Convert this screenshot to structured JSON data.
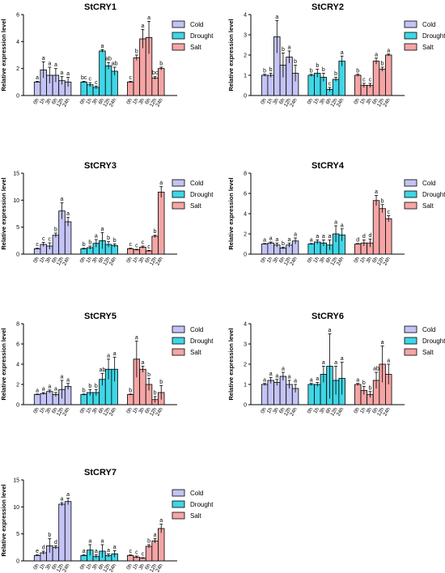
{
  "ylabel": "Relative expression level",
  "groups": [
    "Cold",
    "Drought",
    "Salt"
  ],
  "timepoints": [
    "0h",
    "1h",
    "3h",
    "6h",
    "12h",
    "24h"
  ],
  "colors": {
    "Cold": "#c3c3f5",
    "Drought": "#3fd6e6",
    "Salt": "#f5a5a5"
  },
  "chart_data": [
    {
      "type": "bar",
      "title": "StCRY1",
      "ylim": [
        0,
        6
      ],
      "yticks": [
        0,
        2,
        4,
        6
      ],
      "series": [
        {
          "name": "Cold",
          "values": [
            1.0,
            1.9,
            1.5,
            1.5,
            1.1,
            1.0
          ],
          "errors": [
            0.05,
            0.6,
            0.6,
            0.5,
            0.3,
            0.35
          ],
          "letters": [
            "a",
            "a",
            "a",
            "a",
            "a",
            "a"
          ]
        },
        {
          "name": "Drought",
          "values": [
            1.0,
            0.8,
            0.6,
            3.3,
            2.2,
            1.8
          ],
          "errors": [
            0.05,
            0.15,
            0.1,
            0.1,
            0.25,
            0.3
          ],
          "letters": [
            "bc",
            "c",
            "c",
            "a",
            "ab",
            "ab"
          ]
        },
        {
          "name": "Salt",
          "values": [
            1.0,
            2.8,
            4.2,
            4.3,
            1.3,
            2.0
          ],
          "errors": [
            0.05,
            0.2,
            0.7,
            1.2,
            0.1,
            0.1
          ],
          "letters": [
            "c",
            "b",
            "a",
            "a",
            "bc",
            "b"
          ]
        }
      ]
    },
    {
      "type": "bar",
      "title": "StCRY2",
      "ylim": [
        0,
        4
      ],
      "yticks": [
        0,
        1,
        2,
        3,
        4
      ],
      "series": [
        {
          "name": "Cold",
          "values": [
            1.0,
            1.0,
            2.9,
            1.5,
            1.9,
            1.1
          ],
          "errors": [
            0.05,
            0.1,
            0.8,
            0.6,
            0.3,
            0.4
          ],
          "letters": [
            "b",
            "b",
            "a",
            "b",
            "a",
            "b"
          ]
        },
        {
          "name": "Drought",
          "values": [
            1.0,
            1.1,
            0.9,
            0.3,
            0.8,
            1.7
          ],
          "errors": [
            0.05,
            0.2,
            0.2,
            0.1,
            0.1,
            0.25
          ],
          "letters": [
            "b",
            "b",
            "b",
            "c",
            "b",
            "a"
          ]
        },
        {
          "name": "Salt",
          "values": [
            1.0,
            0.5,
            0.5,
            1.7,
            1.3,
            2.0
          ],
          "errors": [
            0.05,
            0.1,
            0.1,
            0.15,
            0.1,
            0.05
          ],
          "letters": [
            "b",
            "c",
            "c",
            "a",
            "b",
            "a"
          ]
        }
      ]
    },
    {
      "type": "bar",
      "title": "StCRY3",
      "ylim": [
        0,
        15
      ],
      "yticks": [
        0,
        5,
        10,
        15
      ],
      "series": [
        {
          "name": "Cold",
          "values": [
            1.0,
            1.8,
            1.5,
            3.5,
            8.0,
            6.0
          ],
          "errors": [
            0.1,
            0.4,
            0.6,
            0.4,
            1.5,
            0.8
          ],
          "letters": [
            "c",
            "c",
            "c",
            "b",
            "a",
            "a"
          ]
        },
        {
          "name": "Drought",
          "values": [
            1.0,
            1.2,
            2.0,
            2.5,
            1.8,
            1.6
          ],
          "errors": [
            0.1,
            0.3,
            0.7,
            1.5,
            0.5,
            0.3
          ],
          "letters": [
            "b",
            "b",
            "a",
            "a",
            "b",
            "b"
          ]
        },
        {
          "name": "Salt",
          "values": [
            1.0,
            0.8,
            1.3,
            0.6,
            3.3,
            11.5
          ],
          "errors": [
            0.1,
            0.1,
            0.2,
            0.1,
            0.2,
            1.0
          ],
          "letters": [
            "c",
            "c",
            "c",
            "c",
            "b",
            "a"
          ]
        }
      ]
    },
    {
      "type": "bar",
      "title": "StCRY4",
      "ylim": [
        0,
        8
      ],
      "yticks": [
        0,
        2,
        4,
        6,
        8
      ],
      "series": [
        {
          "name": "Cold",
          "values": [
            1.0,
            1.1,
            0.9,
            0.6,
            0.9,
            1.3
          ],
          "errors": [
            0.05,
            0.1,
            0.2,
            0.1,
            0.2,
            0.3
          ],
          "letters": [
            "a",
            "a",
            "a",
            "b",
            "a",
            "a"
          ]
        },
        {
          "name": "Drought",
          "values": [
            1.0,
            1.2,
            1.1,
            0.9,
            2.0,
            1.9
          ],
          "errors": [
            0.05,
            0.2,
            0.3,
            0.5,
            0.8,
            0.6
          ],
          "letters": [
            "a",
            "a",
            "a",
            "a",
            "a",
            "a"
          ]
        },
        {
          "name": "Salt",
          "values": [
            1.0,
            1.1,
            1.1,
            5.3,
            4.5,
            3.5
          ],
          "errors": [
            0.05,
            0.3,
            0.4,
            0.5,
            0.4,
            0.3
          ],
          "letters": [
            "d",
            "d",
            "d",
            "a",
            "b",
            "c"
          ]
        }
      ]
    },
    {
      "type": "bar",
      "title": "StCRY5",
      "ylim": [
        0,
        8
      ],
      "yticks": [
        0,
        2,
        4,
        6,
        8
      ],
      "series": [
        {
          "name": "Cold",
          "values": [
            1.0,
            1.1,
            1.3,
            1.0,
            1.5,
            1.8
          ],
          "errors": [
            0.05,
            0.1,
            0.15,
            0.2,
            0.9,
            0.3
          ],
          "letters": [
            "a",
            "a",
            "a",
            "a",
            "a",
            "a"
          ]
        },
        {
          "name": "Drought",
          "values": [
            1.0,
            1.2,
            1.2,
            2.5,
            3.5,
            3.5
          ],
          "errors": [
            0.05,
            0.3,
            0.3,
            0.6,
            1.0,
            1.2
          ],
          "letters": [
            "b",
            "b",
            "b",
            "ab",
            "a",
            "a"
          ]
        },
        {
          "name": "Salt",
          "values": [
            1.0,
            4.5,
            3.5,
            2.0,
            0.5,
            1.2
          ],
          "errors": [
            0.05,
            1.8,
            0.3,
            0.6,
            0.3,
            0.7
          ],
          "letters": [
            "b",
            "a",
            "a",
            "b",
            "b",
            "b"
          ]
        }
      ]
    },
    {
      "type": "bar",
      "title": "StCRY6",
      "ylim": [
        0,
        4
      ],
      "yticks": [
        0,
        1,
        2,
        3,
        4
      ],
      "series": [
        {
          "name": "Cold",
          "values": [
            1.0,
            1.2,
            1.1,
            1.4,
            1.0,
            0.8
          ],
          "errors": [
            0.05,
            0.15,
            0.15,
            0.2,
            0.2,
            0.2
          ],
          "letters": [
            "a",
            "a",
            "a",
            "a",
            "a",
            "a"
          ]
        },
        {
          "name": "Drought",
          "values": [
            1.0,
            1.0,
            1.5,
            1.9,
            1.2,
            1.3
          ],
          "errors": [
            0.05,
            0.1,
            0.4,
            1.6,
            0.7,
            0.8
          ],
          "letters": [
            "a",
            "a",
            "a",
            "a",
            "a",
            "a"
          ]
        },
        {
          "name": "Salt",
          "values": [
            1.0,
            0.7,
            0.5,
            1.2,
            2.0,
            1.5
          ],
          "errors": [
            0.05,
            0.2,
            0.15,
            0.4,
            0.9,
            0.5
          ],
          "letters": [
            "a",
            "b",
            "b",
            "ab",
            "a",
            "a"
          ]
        }
      ]
    },
    {
      "type": "bar",
      "title": "StCRY7",
      "ylim": [
        0,
        15
      ],
      "yticks": [
        0,
        5,
        10,
        15
      ],
      "series": [
        {
          "name": "Cold",
          "values": [
            1.0,
            1.5,
            2.8,
            2.5,
            10.5,
            11.0
          ],
          "errors": [
            0.1,
            0.3,
            1.3,
            0.3,
            0.3,
            0.6
          ],
          "letters": [
            "e",
            "d",
            "b",
            "d",
            "a",
            "a"
          ]
        },
        {
          "name": "Drought",
          "values": [
            1.0,
            2.0,
            0.8,
            1.8,
            1.0,
            1.3
          ],
          "errors": [
            0.1,
            1.0,
            0.3,
            1.2,
            0.3,
            0.6
          ],
          "letters": [
            "a",
            "a",
            "a",
            "a",
            "a",
            "a"
          ]
        },
        {
          "name": "Salt",
          "values": [
            1.0,
            0.7,
            0.5,
            2.7,
            3.7,
            6.0
          ],
          "errors": [
            0.1,
            0.2,
            0.1,
            0.3,
            0.4,
            0.8
          ],
          "letters": [
            "c",
            "c",
            "c",
            "b",
            "a",
            "a"
          ]
        }
      ]
    }
  ]
}
